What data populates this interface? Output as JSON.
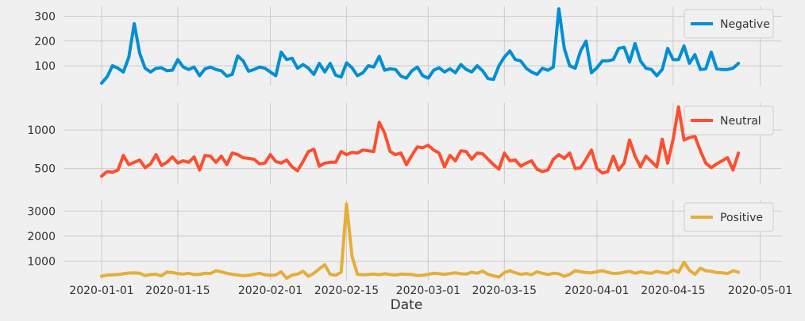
{
  "chart_data": {
    "type": "line",
    "layout": "3 vertically stacked subplots sharing x-axis",
    "xlabel": "Date",
    "x_ticks": [
      "2020-01-01",
      "2020-01-15",
      "2020-02-01",
      "2020-02-15",
      "2020-03-01",
      "2020-03-15",
      "2020-04-01",
      "2020-04-15",
      "2020-05-01"
    ],
    "x_start": "2020-01-01",
    "x_end": "2020-04-28",
    "xlim": [
      "2019-12-25",
      "2020-05-05"
    ],
    "grid": true,
    "style": "fivethirtyeight",
    "series": [
      {
        "name": "Negative",
        "color": "#008fd5",
        "legend": "top-right",
        "ylim": [
          20,
          340
        ],
        "yticks": [
          100,
          200,
          300
        ],
        "values": [
          30,
          55,
          100,
          90,
          75,
          135,
          270,
          150,
          90,
          75,
          90,
          92,
          80,
          82,
          125,
          95,
          85,
          95,
          60,
          88,
          95,
          85,
          80,
          58,
          65,
          140,
          120,
          78,
          85,
          95,
          90,
          75,
          60,
          155,
          125,
          130,
          90,
          105,
          90,
          65,
          110,
          75,
          110,
          62,
          55,
          112,
          92,
          60,
          72,
          100,
          95,
          138,
          82,
          88,
          85,
          58,
          50,
          80,
          95,
          60,
          50,
          82,
          92,
          75,
          88,
          72,
          105,
          85,
          75,
          100,
          80,
          48,
          45,
          100,
          135,
          160,
          125,
          120,
          90,
          75,
          65,
          90,
          82,
          95,
          330,
          170,
          100,
          90,
          160,
          200,
          72,
          92,
          120,
          120,
          125,
          170,
          175,
          115,
          190,
          120,
          90,
          85,
          60,
          85,
          170,
          125,
          125,
          180,
          110,
          145,
          85,
          88,
          155,
          88,
          85,
          85,
          90,
          110
        ]
      },
      {
        "name": "Neutral",
        "color": "#fc4f30",
        "legend": "top-right",
        "ylim": [
          300,
          1350
        ],
        "yticks": [
          500,
          1000
        ],
        "values": [
          400,
          460,
          450,
          480,
          670,
          550,
          580,
          610,
          510,
          560,
          680,
          540,
          580,
          650,
          570,
          600,
          580,
          650,
          480,
          670,
          660,
          580,
          660,
          550,
          700,
          680,
          640,
          630,
          620,
          560,
          570,
          680,
          590,
          570,
          610,
          520,
          470,
          590,
          720,
          750,
          530,
          570,
          580,
          580,
          720,
          680,
          710,
          700,
          740,
          730,
          720,
          1100,
          960,
          720,
          680,
          700,
          550,
          670,
          780,
          770,
          800,
          740,
          700,
          520,
          670,
          600,
          730,
          720,
          620,
          700,
          690,
          620,
          550,
          490,
          700,
          600,
          610,
          530,
          570,
          600,
          490,
          460,
          480,
          620,
          680,
          630,
          700,
          500,
          510,
          620,
          740,
          500,
          440,
          460,
          660,
          480,
          570,
          870,
          660,
          520,
          660,
          590,
          520,
          880,
          570,
          880,
          1300,
          870,
          900,
          920,
          730,
          570,
          510,
          560,
          600,
          640,
          480,
          700
        ]
      },
      {
        "name": "Positive",
        "color": "#e5ae38",
        "legend": "top-right",
        "ylim": [
          230,
          3450
        ],
        "yticks": [
          1000,
          2000,
          3000
        ],
        "values": [
          400,
          450,
          460,
          470,
          500,
          530,
          540,
          520,
          430,
          470,
          480,
          420,
          570,
          550,
          510,
          490,
          520,
          470,
          480,
          520,
          510,
          620,
          580,
          520,
          480,
          450,
          420,
          440,
          480,
          520,
          460,
          440,
          450,
          580,
          320,
          450,
          490,
          600,
          400,
          520,
          700,
          860,
          480,
          440,
          560,
          3280,
          1200,
          480,
          460,
          470,
          490,
          460,
          500,
          470,
          450,
          490,
          480,
          470,
          430,
          440,
          480,
          520,
          500,
          480,
          510,
          540,
          500,
          490,
          560,
          520,
          610,
          480,
          420,
          370,
          550,
          620,
          540,
          480,
          510,
          460,
          580,
          520,
          470,
          520,
          500,
          400,
          480,
          620,
          580,
          550,
          540,
          580,
          620,
          560,
          510,
          520,
          560,
          600,
          520,
          580,
          540,
          520,
          600,
          550,
          520,
          650,
          560,
          960,
          640,
          480,
          720,
          620,
          600,
          550,
          540,
          510,
          620,
          560
        ]
      }
    ]
  }
}
